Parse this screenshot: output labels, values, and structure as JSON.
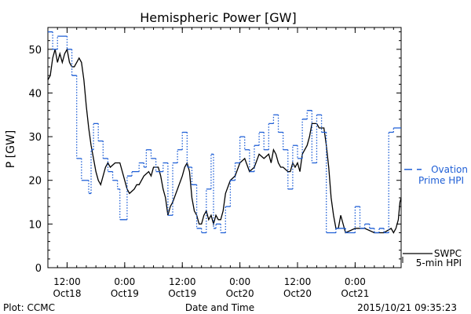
{
  "chart_data": {
    "type": "line",
    "title": "Hemispheric Power [GW]",
    "ylabel": "P [GW]",
    "xlabel": "Date and Time",
    "ylim": [
      0,
      55
    ],
    "xlim": [
      "2015-10-18 08:00",
      "2015-10-21 09:35"
    ],
    "yticks": [
      0,
      10,
      20,
      30,
      40,
      50
    ],
    "xticks": [
      {
        "label": [
          "12:00",
          "Oct18"
        ],
        "t": "2015-10-18 12:00"
      },
      {
        "label": [
          "0:00",
          "Oct19"
        ],
        "t": "2015-10-19 00:00"
      },
      {
        "label": [
          "12:00",
          "Oct19"
        ],
        "t": "2015-10-19 12:00"
      },
      {
        "label": [
          "0:00",
          "Oct20"
        ],
        "t": "2015-10-20 00:00"
      },
      {
        "label": [
          "12:00",
          "Oct20"
        ],
        "t": "2015-10-20 12:00"
      },
      {
        "label": [
          "0:00",
          "Oct21"
        ],
        "t": "2015-10-21 00:00"
      }
    ],
    "grid": false,
    "legend_position": "right",
    "footer_left": "Plot: CCMC",
    "footer_right": "2015/10/21 09:35:23",
    "series": [
      {
        "name": "SWPC 5-min HPI",
        "legend_lines": [
          "SWPC",
          "5-min HPI"
        ],
        "color": "#000000",
        "style": "solid",
        "points": [
          [
            "2015-10-18 08:00",
            43
          ],
          [
            "2015-10-18 08:30",
            44
          ],
          [
            "2015-10-18 09:00",
            48
          ],
          [
            "2015-10-18 09:30",
            50
          ],
          [
            "2015-10-18 10:00",
            47
          ],
          [
            "2015-10-18 10:30",
            49
          ],
          [
            "2015-10-18 11:00",
            47
          ],
          [
            "2015-10-18 11:30",
            49
          ],
          [
            "2015-10-18 12:00",
            50
          ],
          [
            "2015-10-18 12:30",
            47
          ],
          [
            "2015-10-18 13:00",
            46
          ],
          [
            "2015-10-18 13:30",
            46
          ],
          [
            "2015-10-18 14:00",
            47
          ],
          [
            "2015-10-18 14:30",
            48
          ],
          [
            "2015-10-18 15:00",
            47
          ],
          [
            "2015-10-18 15:30",
            43
          ],
          [
            "2015-10-18 16:00",
            37
          ],
          [
            "2015-10-18 16:30",
            32
          ],
          [
            "2015-10-18 17:00",
            28
          ],
          [
            "2015-10-18 17:30",
            25
          ],
          [
            "2015-10-18 18:00",
            22
          ],
          [
            "2015-10-18 18:30",
            20
          ],
          [
            "2015-10-18 19:00",
            19
          ],
          [
            "2015-10-18 19:30",
            21
          ],
          [
            "2015-10-18 20:00",
            23
          ],
          [
            "2015-10-18 20:30",
            24
          ],
          [
            "2015-10-18 21:00",
            23
          ],
          [
            "2015-10-18 22:00",
            24
          ],
          [
            "2015-10-18 23:00",
            24
          ],
          [
            "2015-10-19 00:00",
            20
          ],
          [
            "2015-10-19 00:30",
            18
          ],
          [
            "2015-10-19 01:00",
            17
          ],
          [
            "2015-10-19 02:00",
            18
          ],
          [
            "2015-10-19 02:30",
            19
          ],
          [
            "2015-10-19 03:00",
            19
          ],
          [
            "2015-10-19 04:00",
            21
          ],
          [
            "2015-10-19 05:00",
            22
          ],
          [
            "2015-10-19 05:30",
            21
          ],
          [
            "2015-10-19 06:00",
            23
          ],
          [
            "2015-10-19 06:30",
            23
          ],
          [
            "2015-10-19 07:00",
            23
          ],
          [
            "2015-10-19 07:30",
            21
          ],
          [
            "2015-10-19 08:00",
            18
          ],
          [
            "2015-10-19 08:30",
            16
          ],
          [
            "2015-10-19 09:00",
            12
          ],
          [
            "2015-10-19 09:30",
            14
          ],
          [
            "2015-10-19 10:00",
            15
          ],
          [
            "2015-10-19 11:00",
            18
          ],
          [
            "2015-10-19 12:00",
            21
          ],
          [
            "2015-10-19 12:30",
            23
          ],
          [
            "2015-10-19 13:00",
            24
          ],
          [
            "2015-10-19 13:30",
            22
          ],
          [
            "2015-10-19 14:00",
            16
          ],
          [
            "2015-10-19 14:30",
            13
          ],
          [
            "2015-10-19 15:00",
            12
          ],
          [
            "2015-10-19 15:30",
            10
          ],
          [
            "2015-10-19 16:00",
            10
          ],
          [
            "2015-10-19 16:30",
            12
          ],
          [
            "2015-10-19 17:00",
            13
          ],
          [
            "2015-10-19 17:30",
            11
          ],
          [
            "2015-10-19 18:00",
            12
          ],
          [
            "2015-10-19 18:30",
            10
          ],
          [
            "2015-10-19 19:00",
            12
          ],
          [
            "2015-10-19 19:30",
            11
          ],
          [
            "2015-10-19 20:00",
            11
          ],
          [
            "2015-10-19 20:30",
            13
          ],
          [
            "2015-10-19 21:00",
            17
          ],
          [
            "2015-10-19 22:00",
            20
          ],
          [
            "2015-10-19 23:00",
            21
          ],
          [
            "2015-10-20 00:00",
            24
          ],
          [
            "2015-10-20 01:00",
            25
          ],
          [
            "2015-10-20 02:00",
            22
          ],
          [
            "2015-10-20 03:00",
            23
          ],
          [
            "2015-10-20 04:00",
            26
          ],
          [
            "2015-10-20 05:00",
            25
          ],
          [
            "2015-10-20 06:00",
            26
          ],
          [
            "2015-10-20 06:30",
            24
          ],
          [
            "2015-10-20 07:00",
            27
          ],
          [
            "2015-10-20 07:30",
            26
          ],
          [
            "2015-10-20 08:00",
            24
          ],
          [
            "2015-10-20 08:30",
            23
          ],
          [
            "2015-10-20 09:00",
            23
          ],
          [
            "2015-10-20 10:00",
            22
          ],
          [
            "2015-10-20 10:30",
            22
          ],
          [
            "2015-10-20 11:00",
            24
          ],
          [
            "2015-10-20 11:30",
            23
          ],
          [
            "2015-10-20 12:00",
            24
          ],
          [
            "2015-10-20 12:30",
            22
          ],
          [
            "2015-10-20 13:00",
            26
          ],
          [
            "2015-10-20 14:00",
            28
          ],
          [
            "2015-10-20 14:30",
            30
          ],
          [
            "2015-10-20 15:00",
            33
          ],
          [
            "2015-10-20 16:00",
            33
          ],
          [
            "2015-10-20 16:30",
            32
          ],
          [
            "2015-10-20 17:30",
            32
          ],
          [
            "2015-10-20 18:00",
            28
          ],
          [
            "2015-10-20 18:30",
            23
          ],
          [
            "2015-10-20 19:00",
            16
          ],
          [
            "2015-10-20 19:30",
            12
          ],
          [
            "2015-10-20 20:00",
            9
          ],
          [
            "2015-10-20 20:30",
            9
          ],
          [
            "2015-10-20 21:00",
            12
          ],
          [
            "2015-10-20 21:30",
            10
          ],
          [
            "2015-10-20 22:00",
            8
          ],
          [
            "2015-10-21 00:00",
            9
          ],
          [
            "2015-10-21 02:00",
            9
          ],
          [
            "2015-10-21 04:00",
            8
          ],
          [
            "2015-10-21 06:00",
            8
          ],
          [
            "2015-10-21 07:30",
            9
          ],
          [
            "2015-10-21 08:00",
            8
          ],
          [
            "2015-10-21 08:30",
            9
          ],
          [
            "2015-10-21 09:00",
            11
          ],
          [
            "2015-10-21 09:20",
            15
          ],
          [
            "2015-10-21 09:35",
            16
          ]
        ]
      },
      {
        "name": "Ovation Prime HPI",
        "legend_lines": [
          "Ovation",
          "Prime HPI"
        ],
        "color": "#1f5fd6",
        "style": "dotted-step",
        "points": [
          [
            "2015-10-18 08:00",
            54
          ],
          [
            "2015-10-18 09:00",
            50
          ],
          [
            "2015-10-18 10:00",
            53
          ],
          [
            "2015-10-18 11:30",
            53
          ],
          [
            "2015-10-18 12:00",
            50
          ],
          [
            "2015-10-18 13:00",
            44
          ],
          [
            "2015-10-18 14:00",
            25
          ],
          [
            "2015-10-18 15:00",
            20
          ],
          [
            "2015-10-18 16:30",
            17
          ],
          [
            "2015-10-18 17:00",
            27
          ],
          [
            "2015-10-18 17:30",
            33
          ],
          [
            "2015-10-18 18:30",
            29
          ],
          [
            "2015-10-18 19:30",
            25
          ],
          [
            "2015-10-18 20:30",
            22
          ],
          [
            "2015-10-18 21:30",
            20
          ],
          [
            "2015-10-18 22:30",
            18
          ],
          [
            "2015-10-18 23:00",
            11
          ],
          [
            "2015-10-19 00:30",
            21
          ],
          [
            "2015-10-19 01:30",
            22
          ],
          [
            "2015-10-19 03:00",
            24
          ],
          [
            "2015-10-19 04:00",
            23
          ],
          [
            "2015-10-19 04:30",
            27
          ],
          [
            "2015-10-19 05:30",
            25
          ],
          [
            "2015-10-19 06:30",
            22
          ],
          [
            "2015-10-19 08:00",
            24
          ],
          [
            "2015-10-19 09:00",
            12
          ],
          [
            "2015-10-19 10:00",
            24
          ],
          [
            "2015-10-19 11:00",
            27
          ],
          [
            "2015-10-19 12:00",
            31
          ],
          [
            "2015-10-19 13:00",
            23
          ],
          [
            "2015-10-19 14:00",
            19
          ],
          [
            "2015-10-19 15:00",
            9
          ],
          [
            "2015-10-19 16:00",
            8
          ],
          [
            "2015-10-19 17:00",
            18
          ],
          [
            "2015-10-19 18:00",
            26
          ],
          [
            "2015-10-19 18:30",
            9
          ],
          [
            "2015-10-19 19:00",
            10
          ],
          [
            "2015-10-19 20:00",
            8
          ],
          [
            "2015-10-19 21:00",
            14
          ],
          [
            "2015-10-19 22:00",
            20
          ],
          [
            "2015-10-19 23:00",
            24
          ],
          [
            "2015-10-20 00:00",
            30
          ],
          [
            "2015-10-20 01:00",
            27
          ],
          [
            "2015-10-20 02:00",
            22
          ],
          [
            "2015-10-20 03:00",
            28
          ],
          [
            "2015-10-20 04:00",
            31
          ],
          [
            "2015-10-20 05:00",
            27
          ],
          [
            "2015-10-20 06:00",
            33
          ],
          [
            "2015-10-20 07:00",
            35
          ],
          [
            "2015-10-20 08:00",
            31
          ],
          [
            "2015-10-20 09:00",
            27
          ],
          [
            "2015-10-20 10:00",
            18
          ],
          [
            "2015-10-20 11:00",
            28
          ],
          [
            "2015-10-20 12:00",
            25
          ],
          [
            "2015-10-20 13:00",
            34
          ],
          [
            "2015-10-20 14:00",
            36
          ],
          [
            "2015-10-20 15:00",
            24
          ],
          [
            "2015-10-20 16:00",
            35
          ],
          [
            "2015-10-20 17:00",
            31
          ],
          [
            "2015-10-20 18:00",
            8
          ],
          [
            "2015-10-20 20:00",
            9
          ],
          [
            "2015-10-20 22:00",
            8
          ],
          [
            "2015-10-21 00:00",
            14
          ],
          [
            "2015-10-21 01:00",
            9
          ],
          [
            "2015-10-21 02:00",
            10
          ],
          [
            "2015-10-21 03:00",
            9
          ],
          [
            "2015-10-21 04:00",
            8
          ],
          [
            "2015-10-21 05:00",
            9
          ],
          [
            "2015-10-21 06:00",
            8
          ],
          [
            "2015-10-21 07:00",
            31
          ],
          [
            "2015-10-21 08:00",
            32
          ],
          [
            "2015-10-21 09:35",
            32
          ]
        ]
      }
    ]
  }
}
